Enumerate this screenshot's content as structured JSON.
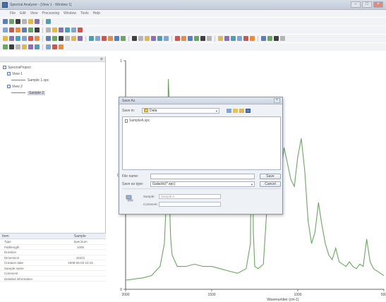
{
  "window": {
    "title": "Spectral Analyzer - [View 1 - Window 1]"
  },
  "menu": [
    "File",
    "Edit",
    "View",
    "Processing",
    "Window",
    "Tools",
    "Help"
  ],
  "toolbars": [
    {
      "count": 7
    },
    {
      "count": 12
    },
    {
      "count": 40
    },
    {
      "count": 9
    }
  ],
  "left_panel": {
    "tree": [
      {
        "label": "SpectraProject",
        "level": 0,
        "selected": false
      },
      {
        "label": "View 1",
        "level": 1,
        "selected": false
      },
      {
        "label": "Sample 1.spc",
        "level": 2,
        "selected": false,
        "line": true
      },
      {
        "label": "View 2",
        "level": 1,
        "selected": false
      },
      {
        "label": "Sample 2",
        "level": 2,
        "selected": true,
        "line": true
      }
    ],
    "props_header": {
      "name": "Item",
      "value": "Sample"
    },
    "props": [
      {
        "name": "Type",
        "value": "Spectrum"
      },
      {
        "name": "Pathlength",
        "value": "1000"
      },
      {
        "name": "Duration",
        "value": ""
      },
      {
        "name": "Dimension",
        "value": "16421"
      },
      {
        "name": "Creation date",
        "value": "2008-06-03 10:15"
      },
      {
        "name": "Sample name",
        "value": ""
      },
      {
        "name": "Comment",
        "value": ""
      },
      {
        "name": "Detailed information",
        "value": ""
      }
    ]
  },
  "chart_data": {
    "type": "line",
    "xlabel": "Wavenumber (cm-1)",
    "ylabel": "",
    "xlim": [
      2000,
      500
    ],
    "ylim": [
      0,
      1
    ],
    "x_ticks": [
      "2000",
      "1500",
      "1000",
      "500"
    ],
    "y_ticks": [
      "1",
      "0.5",
      "0"
    ],
    "series": [
      {
        "color": "#6aa661",
        "x": [
          2000,
          1950,
          1900,
          1850,
          1800,
          1775,
          1760,
          1752,
          1748,
          1745,
          1742,
          1738,
          1730,
          1700,
          1650,
          1600,
          1550,
          1500,
          1450,
          1400,
          1350,
          1300,
          1275,
          1268,
          1263,
          1258,
          1250,
          1230,
          1200,
          1180,
          1160,
          1140,
          1120,
          1100,
          1080,
          1060,
          1040,
          1020,
          1000,
          980,
          960,
          940,
          920,
          900,
          880,
          860,
          840,
          820,
          800,
          780,
          760,
          740,
          720,
          700,
          680,
          660,
          640,
          620,
          600,
          580,
          560,
          540,
          520,
          500
        ],
        "y": [
          0.04,
          0.045,
          0.05,
          0.06,
          0.1,
          0.2,
          0.45,
          0.92,
          0.85,
          0.5,
          0.3,
          0.22,
          0.15,
          0.1,
          0.1,
          0.11,
          0.1,
          0.1,
          0.09,
          0.08,
          0.07,
          0.09,
          0.2,
          0.82,
          0.6,
          0.25,
          0.1,
          0.09,
          0.11,
          0.35,
          0.55,
          0.45,
          0.4,
          0.5,
          0.62,
          0.55,
          0.48,
          0.45,
          0.58,
          0.66,
          0.52,
          0.3,
          0.2,
          0.25,
          0.38,
          0.28,
          0.2,
          0.15,
          0.13,
          0.18,
          0.12,
          0.11,
          0.1,
          0.12,
          0.1,
          0.09,
          0.11,
          0.1,
          0.22,
          0.12,
          0.09,
          0.08,
          0.07,
          0.06
        ]
      }
    ]
  },
  "dialog": {
    "title": "Save As",
    "look_in_label": "Save in:",
    "folder": "Data",
    "files": [
      "SampleA.spc"
    ],
    "filename_label": "File name:",
    "filename_value": "",
    "filetype_label": "Save as type:",
    "filetype_value": "Galactic(*.spc)",
    "save_button": "Save",
    "cancel_button": "Cancel",
    "extra_label_1": "Sample:",
    "extra_value_1": "Sample A",
    "extra_label_2": "Comment:",
    "extra_value_2": ""
  },
  "colors": {
    "spectrum": "#6aa661",
    "axis": "#333333"
  }
}
